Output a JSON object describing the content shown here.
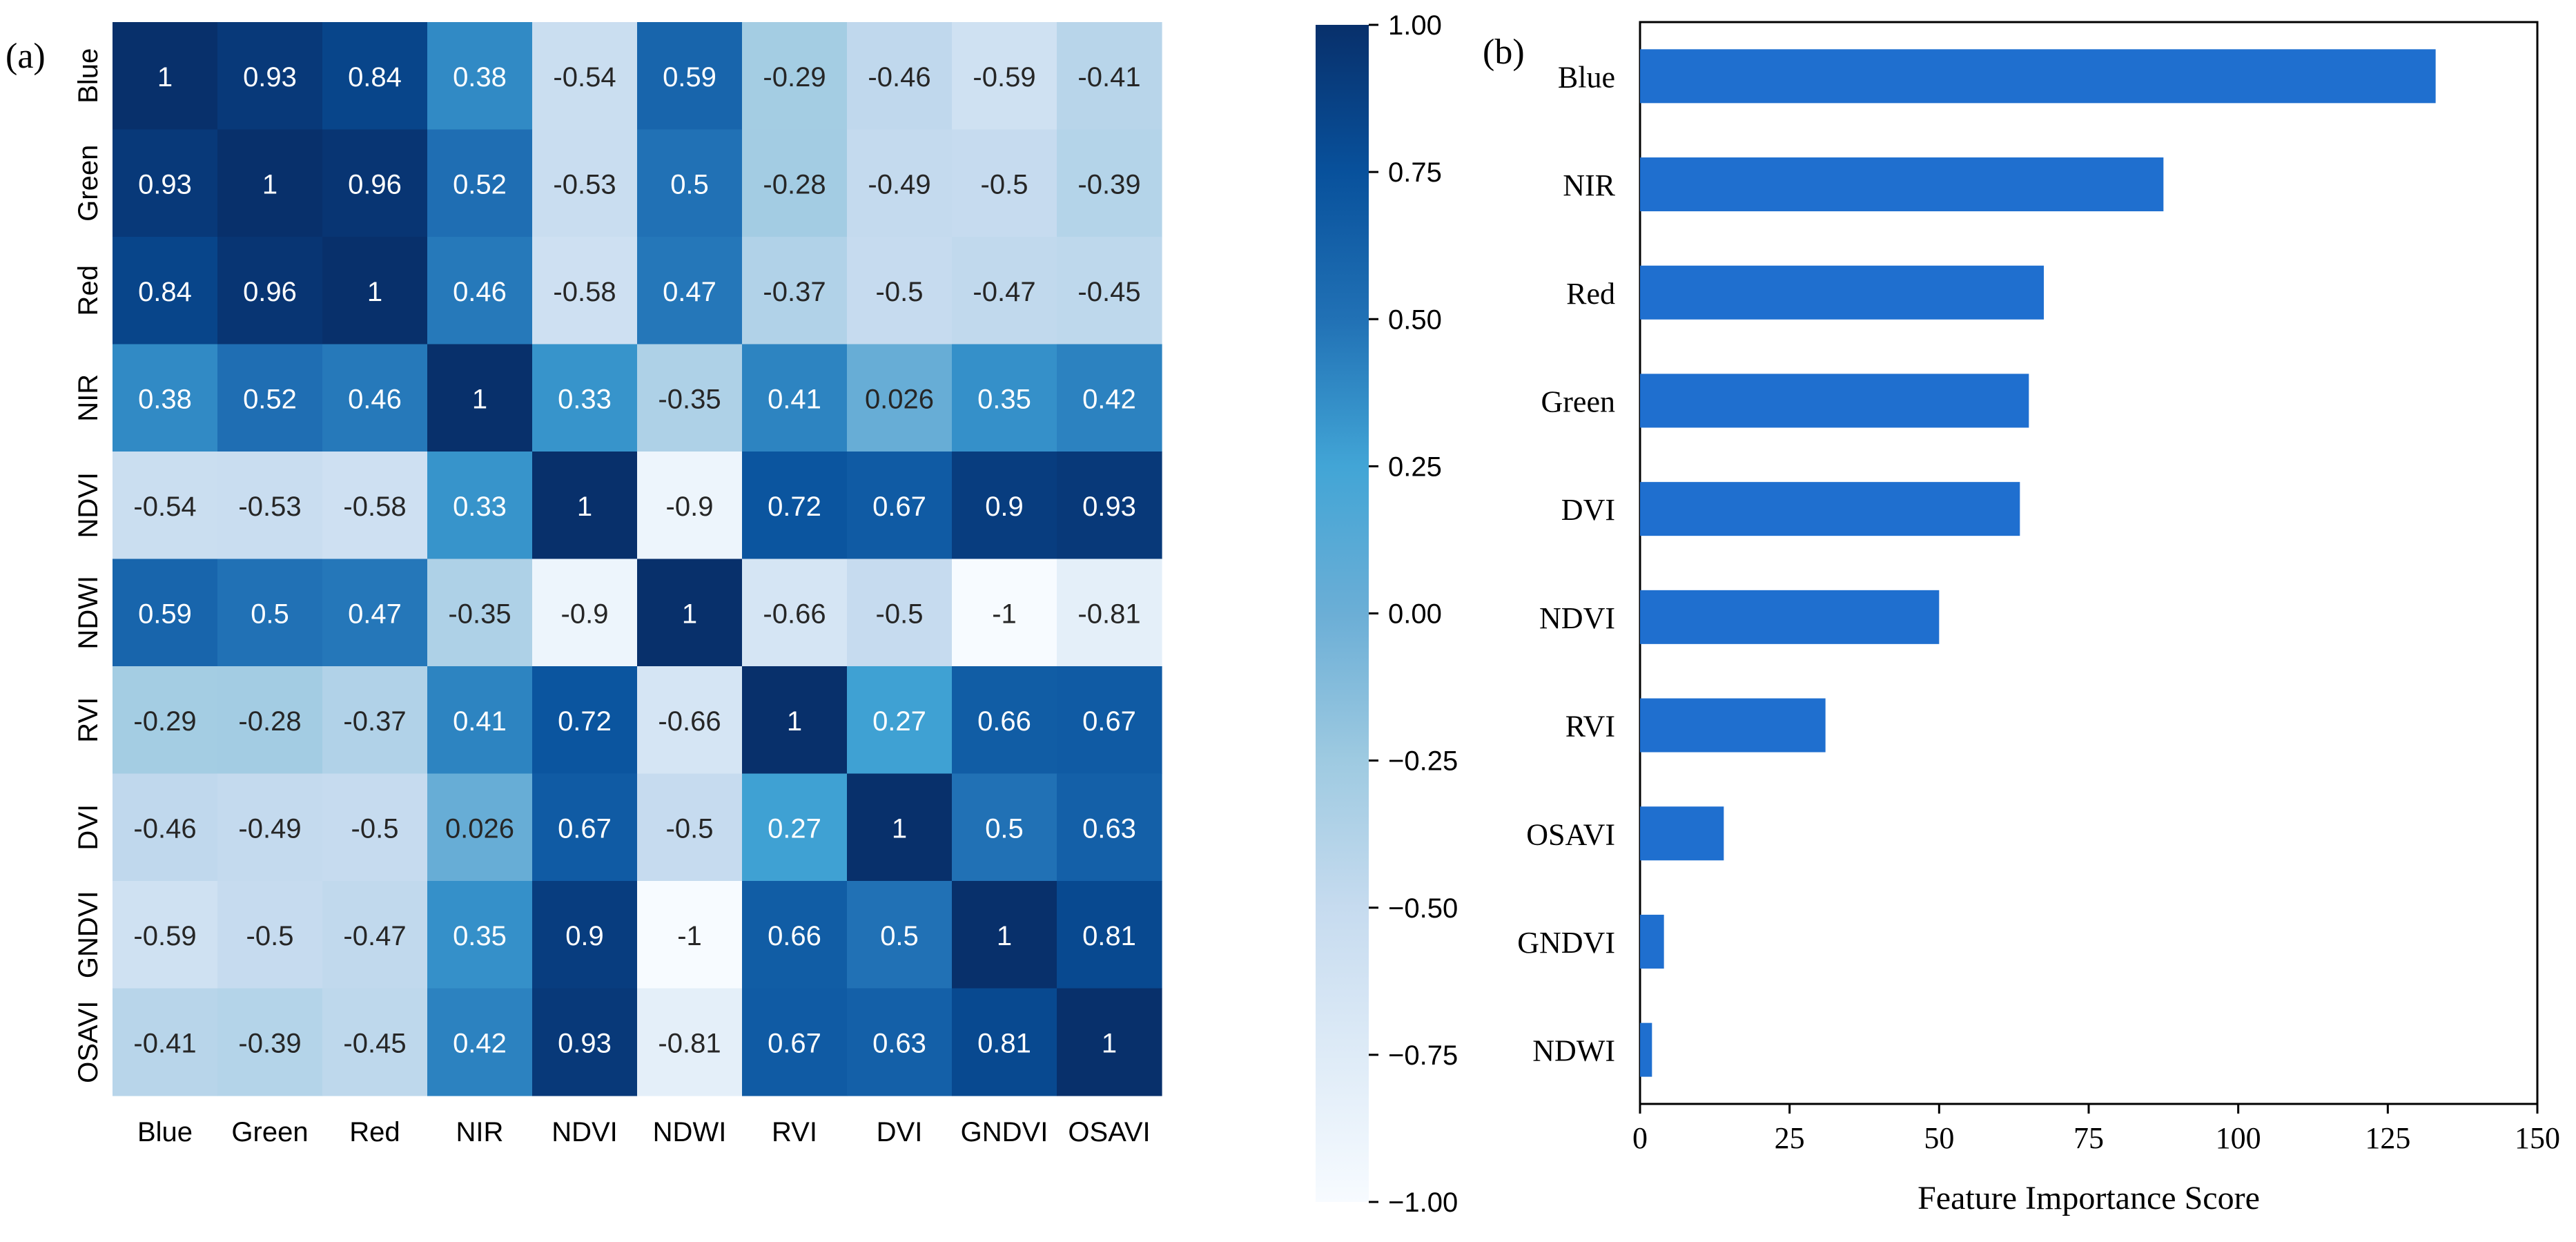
{
  "panel_labels": {
    "a": "(a)",
    "b": "(b)"
  },
  "colors": {
    "bar": "#1F6FCF",
    "axis": "#000000",
    "cmap": [
      "#F7FBFF",
      "#DEEBF7",
      "#C6DBEF",
      "#9ECAE1",
      "#6BAED6",
      "#42A5D6",
      "#2171B5",
      "#08519C",
      "#08306B"
    ]
  },
  "chart_data": [
    {
      "type": "heatmap",
      "panel": "(a)",
      "title": "",
      "labels": [
        "Blue",
        "Green",
        "Red",
        "NIR",
        "NDVI",
        "NDWI",
        "RVI",
        "DVI",
        "GNDVI",
        "OSAVI"
      ],
      "cell_text": [
        [
          "1",
          "0.93",
          "0.84",
          "0.38",
          "-0.54",
          "0.59",
          "-0.29",
          "-0.46",
          "-0.59",
          "-0.41"
        ],
        [
          "0.93",
          "1",
          "0.96",
          "0.52",
          "-0.53",
          "0.5",
          "-0.28",
          "-0.49",
          "-0.5",
          "-0.39"
        ],
        [
          "0.84",
          "0.96",
          "1",
          "0.46",
          "-0.58",
          "0.47",
          "-0.37",
          "-0.5",
          "-0.47",
          "-0.45"
        ],
        [
          "0.38",
          "0.52",
          "0.46",
          "1",
          "0.33",
          "-0.35",
          "0.41",
          "0.026",
          "0.35",
          "0.42"
        ],
        [
          "-0.54",
          "-0.53",
          "-0.58",
          "0.33",
          "1",
          "-0.9",
          "0.72",
          "0.67",
          "0.9",
          "0.93"
        ],
        [
          "0.59",
          "0.5",
          "0.47",
          "-0.35",
          "-0.9",
          "1",
          "-0.66",
          "-0.5",
          "-1",
          "-0.81"
        ],
        [
          "-0.29",
          "-0.28",
          "-0.37",
          "0.41",
          "0.72",
          "-0.66",
          "1",
          "0.27",
          "0.66",
          "0.67"
        ],
        [
          "-0.46",
          "-0.49",
          "-0.5",
          "0.026",
          "0.67",
          "-0.5",
          "0.27",
          "1",
          "0.5",
          "0.63"
        ],
        [
          "-0.59",
          "-0.5",
          "-0.47",
          "0.35",
          "0.9",
          "-1",
          "0.66",
          "0.5",
          "1",
          "0.81"
        ],
        [
          "-0.41",
          "-0.39",
          "-0.45",
          "0.42",
          "0.93",
          "-0.81",
          "0.67",
          "0.63",
          "0.81",
          "1"
        ]
      ],
      "vmin": -1.0,
      "vmax": 1.0,
      "colorbar_ticks": [
        1.0,
        0.75,
        0.5,
        0.25,
        0.0,
        -0.25,
        -0.5,
        -0.75,
        -1.0
      ],
      "colorbar_tick_labels": [
        "1.00",
        "0.75",
        "0.50",
        "0.25",
        "0.00",
        "−0.25",
        "−0.50",
        "−0.75",
        "−1.00"
      ],
      "colorbar_location": "right"
    },
    {
      "type": "bar",
      "orientation": "horizontal",
      "panel": "(b)",
      "categories": [
        "Blue",
        "NIR",
        "Red",
        "Green",
        "DVI",
        "NDVI",
        "RVI",
        "OSAVI",
        "GNDVI",
        "NDWI"
      ],
      "values": [
        133,
        87.5,
        67.5,
        65,
        63.5,
        50,
        31,
        14,
        4,
        2
      ],
      "xlabel": "Feature Importance Score",
      "ylabel": "",
      "xlim": [
        0,
        150
      ],
      "xticks": [
        0,
        25,
        50,
        75,
        100,
        125,
        150
      ],
      "xtick_labels": [
        "0",
        "25",
        "50",
        "75",
        "100",
        "125",
        "150"
      ],
      "grid": false
    }
  ]
}
